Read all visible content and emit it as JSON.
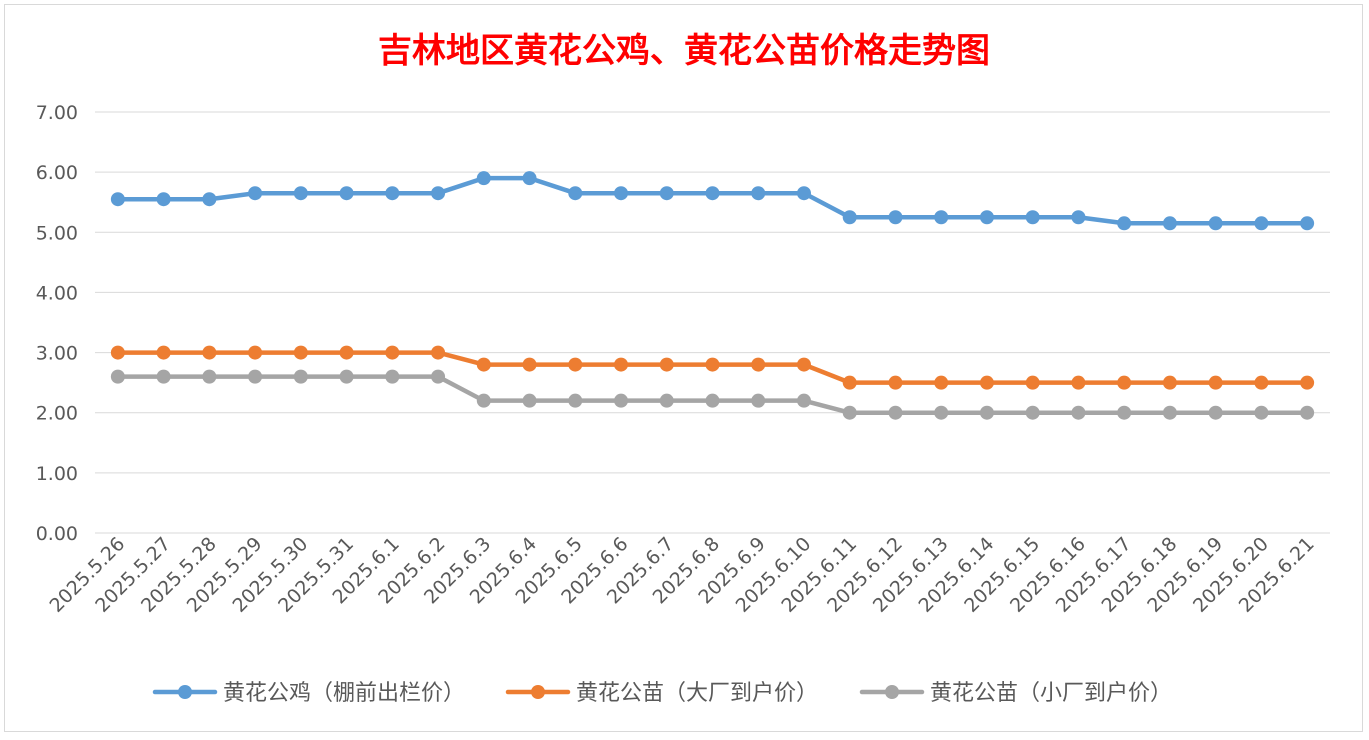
{
  "chart_data": {
    "type": "line",
    "title": "吉林地区黄花公鸡、黄花公苗价格走势图",
    "title_color": "#ff0000",
    "xlabel": "",
    "ylabel": "",
    "ylim": [
      0,
      7
    ],
    "y_ticks": [
      "0.00",
      "1.00",
      "2.00",
      "3.00",
      "4.00",
      "5.00",
      "6.00",
      "7.00"
    ],
    "grid": true,
    "legend_position": "bottom",
    "categories": [
      "2025.5.26",
      "2025.5.27",
      "2025.5.28",
      "2025.5.29",
      "2025.5.30",
      "2025.5.31",
      "2025.6.1",
      "2025.6.2",
      "2025.6.3",
      "2025.6.4",
      "2025.6.5",
      "2025.6.6",
      "2025.6.7",
      "2025.6.8",
      "2025.6.9",
      "2025.6.10",
      "2025.6.11",
      "2025.6.12",
      "2025.6.13",
      "2025.6.14",
      "2025.6.15",
      "2025.6.16",
      "2025.6.17",
      "2025.6.18",
      "2025.6.19",
      "2025.6.20",
      "2025.6.21"
    ],
    "series": [
      {
        "name": "黄花公鸡（棚前出栏价）",
        "color": "#5b9bd5",
        "values": [
          5.55,
          5.55,
          5.55,
          5.65,
          5.65,
          5.65,
          5.65,
          5.65,
          5.9,
          5.9,
          5.65,
          5.65,
          5.65,
          5.65,
          5.65,
          5.65,
          5.25,
          5.25,
          5.25,
          5.25,
          5.25,
          5.25,
          5.15,
          5.15,
          5.15,
          5.15,
          5.15
        ]
      },
      {
        "name": "黄花公苗（大厂到户价）",
        "color": "#ed7d31",
        "values": [
          3.0,
          3.0,
          3.0,
          3.0,
          3.0,
          3.0,
          3.0,
          3.0,
          2.8,
          2.8,
          2.8,
          2.8,
          2.8,
          2.8,
          2.8,
          2.8,
          2.5,
          2.5,
          2.5,
          2.5,
          2.5,
          2.5,
          2.5,
          2.5,
          2.5,
          2.5,
          2.5
        ]
      },
      {
        "name": "黄花公苗（小厂到户价）",
        "color": "#a5a5a5",
        "values": [
          2.6,
          2.6,
          2.6,
          2.6,
          2.6,
          2.6,
          2.6,
          2.6,
          2.2,
          2.2,
          2.2,
          2.2,
          2.2,
          2.2,
          2.2,
          2.2,
          2.0,
          2.0,
          2.0,
          2.0,
          2.0,
          2.0,
          2.0,
          2.0,
          2.0,
          2.0,
          2.0
        ]
      }
    ]
  }
}
